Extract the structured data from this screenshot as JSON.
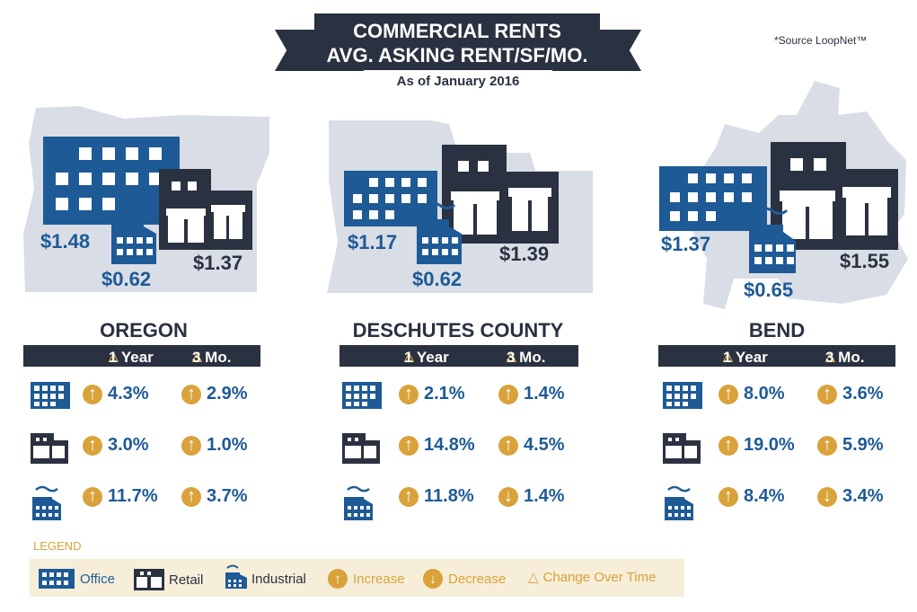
{
  "header": {
    "title_line1": "COMMERCIAL RENTS",
    "title_line2": "AVG. ASKING RENT/SF/MO.",
    "as_of": "As of January 2016",
    "source": "*Source LoopNet™"
  },
  "regions": [
    {
      "name": "OREGON",
      "office_price": "$1.48",
      "industrial_price": "$0.62",
      "retail_price": "$1.37",
      "col_1yr": "1 Year",
      "col_3mo": "3 Mo.",
      "rows": [
        {
          "type": "office",
          "one_year": "4.3%",
          "one_year_dir": "increase",
          "three_mo": "2.9%",
          "three_mo_dir": "increase"
        },
        {
          "type": "retail",
          "one_year": "3.0%",
          "one_year_dir": "increase",
          "three_mo": "1.0%",
          "three_mo_dir": "increase"
        },
        {
          "type": "industrial",
          "one_year": "11.7%",
          "one_year_dir": "increase",
          "three_mo": "3.7%",
          "three_mo_dir": "increase"
        }
      ]
    },
    {
      "name": "DESCHUTES COUNTY",
      "office_price": "$1.17",
      "industrial_price": "$0.62",
      "retail_price": "$1.39",
      "col_1yr": "1 Year",
      "col_3mo": "3 Mo.",
      "rows": [
        {
          "type": "office",
          "one_year": "2.1%",
          "one_year_dir": "increase",
          "three_mo": "1.4%",
          "three_mo_dir": "increase"
        },
        {
          "type": "retail",
          "one_year": "14.8%",
          "one_year_dir": "increase",
          "three_mo": "4.5%",
          "three_mo_dir": "increase"
        },
        {
          "type": "industrial",
          "one_year": "11.8%",
          "one_year_dir": "increase",
          "three_mo": "1.4%",
          "three_mo_dir": "decrease"
        }
      ]
    },
    {
      "name": "BEND",
      "office_price": "$1.37",
      "industrial_price": "$0.65",
      "retail_price": "$1.55",
      "col_1yr": "1 Year",
      "col_3mo": "3 Mo.",
      "rows": [
        {
          "type": "office",
          "one_year": "8.0%",
          "one_year_dir": "increase",
          "three_mo": "3.6%",
          "three_mo_dir": "increase"
        },
        {
          "type": "retail",
          "one_year": "19.0%",
          "one_year_dir": "increase",
          "three_mo": "5.9%",
          "three_mo_dir": "increase"
        },
        {
          "type": "industrial",
          "one_year": "8.4%",
          "one_year_dir": "increase",
          "three_mo": "3.4%",
          "three_mo_dir": "decrease"
        }
      ]
    }
  ],
  "legend": {
    "title": "LEGEND",
    "office": "Office",
    "retail": "Retail",
    "industrial": "Industrial",
    "increase": "Increase",
    "decrease": "Decrease",
    "change": "Change Over Time"
  },
  "colors": {
    "navy": "#2a3140",
    "blue": "#1e5a96",
    "gold": "#d9a23a",
    "map_gray": "#d8dde6",
    "legend_bg": "#f6eed9"
  }
}
